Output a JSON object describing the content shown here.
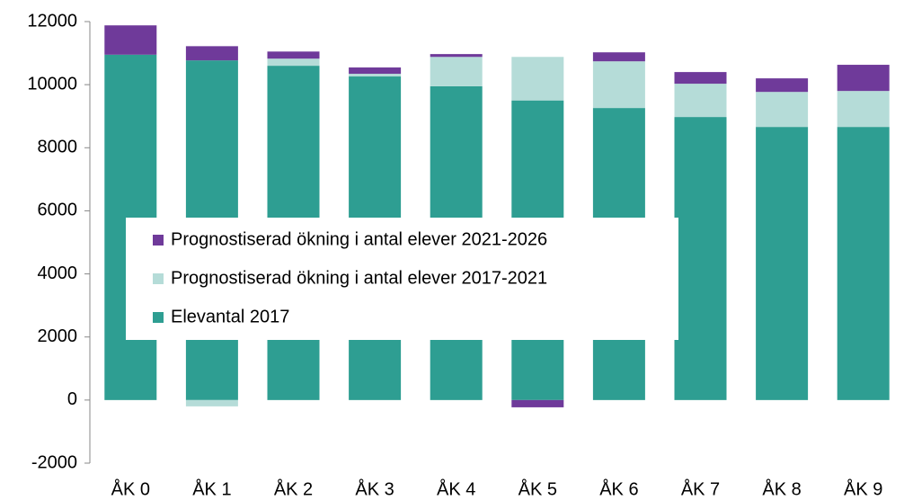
{
  "chart_data": {
    "type": "stacked_bar",
    "categories": [
      "ÅK 0",
      "ÅK 1",
      "ÅK 2",
      "ÅK 3",
      "ÅK 4",
      "ÅK 5",
      "ÅK 6",
      "ÅK 7",
      "ÅK 8",
      "ÅK 9"
    ],
    "series": [
      {
        "name": "Elevantal 2017",
        "color": "#2e9e92",
        "values": [
          10950,
          10770,
          10600,
          10260,
          9950,
          9500,
          9260,
          8975,
          8660,
          8660
        ]
      },
      {
        "name": "Prognostiserad ökning i antal elever 2017-2021",
        "color": "#b5dcd8",
        "values": [
          0,
          -200,
          225,
          85,
          930,
          1380,
          1480,
          1055,
          1110,
          1140
        ]
      },
      {
        "name": "Prognostiserad ökning i antal elever 2021-2026",
        "color": "#6f3a9a",
        "values": [
          930,
          450,
          225,
          200,
          90,
          -230,
          285,
          370,
          430,
          830
        ]
      }
    ],
    "ylim": [
      -2000,
      12000
    ],
    "yticks": [
      -2000,
      0,
      2000,
      4000,
      6000,
      8000,
      10000,
      12000
    ],
    "legend": "center"
  }
}
